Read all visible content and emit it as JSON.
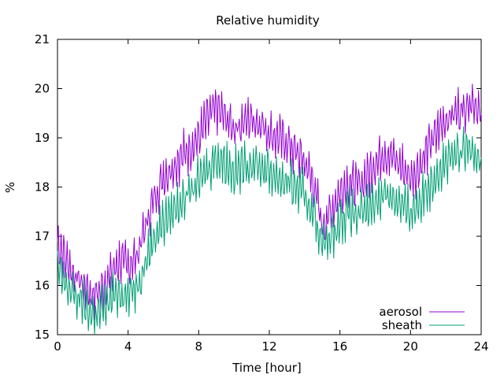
{
  "chart_data": {
    "type": "line",
    "title": "Relative humidity",
    "xlabel": "Time [hour]",
    "ylabel": "%",
    "xlim": [
      0,
      24
    ],
    "ylim": [
      15,
      21
    ],
    "xticks": [
      0,
      4,
      8,
      12,
      16,
      20,
      24
    ],
    "yticks": [
      15,
      16,
      17,
      18,
      19,
      20,
      21
    ],
    "grid": false,
    "legend_position": "bottom-right",
    "series": [
      {
        "name": "aerosol",
        "color": "#9400d3",
        "x": [
          0,
          0.5,
          1,
          1.5,
          2,
          2.5,
          3,
          3.5,
          4,
          4.5,
          5,
          5.5,
          6,
          6.5,
          7,
          7.5,
          8,
          8.5,
          9,
          9.5,
          10,
          10.5,
          11,
          11.5,
          12,
          12.5,
          13,
          13.5,
          14,
          14.5,
          15,
          15.5,
          16,
          16.5,
          17,
          17.5,
          18,
          18.5,
          19,
          19.5,
          20,
          20.5,
          21,
          21.5,
          22,
          22.5,
          23,
          23.5,
          24
        ],
        "values": [
          16.9,
          16.5,
          16.2,
          16.0,
          15.8,
          15.9,
          16.2,
          16.5,
          16.4,
          16.6,
          17.2,
          17.8,
          18.2,
          18.4,
          18.6,
          18.8,
          19.0,
          19.4,
          19.6,
          19.4,
          19.2,
          19.3,
          19.4,
          19.3,
          19.1,
          19.0,
          18.9,
          18.7,
          18.5,
          18.1,
          17.2,
          17.5,
          17.9,
          18.1,
          18.0,
          18.2,
          18.5,
          18.7,
          18.6,
          18.4,
          18.2,
          18.4,
          18.8,
          19.1,
          19.4,
          19.5,
          19.6,
          19.8,
          19.5
        ]
      },
      {
        "name": "sheath",
        "color": "#009e73",
        "x": [
          0,
          0.5,
          1,
          1.5,
          2,
          2.5,
          3,
          3.5,
          4,
          4.5,
          5,
          5.5,
          6,
          6.5,
          7,
          7.5,
          8,
          8.5,
          9,
          9.5,
          10,
          10.5,
          11,
          11.5,
          12,
          12.5,
          13,
          13.5,
          14,
          14.5,
          15,
          15.5,
          16,
          16.5,
          17,
          17.5,
          18,
          18.5,
          19,
          19.5,
          20,
          20.5,
          21,
          21.5,
          22,
          22.5,
          23,
          23.5,
          24
        ],
        "values": [
          16.3,
          16.0,
          15.8,
          15.6,
          15.4,
          15.5,
          15.7,
          15.9,
          15.8,
          16.0,
          16.5,
          17.0,
          17.3,
          17.5,
          17.7,
          17.9,
          18.1,
          18.4,
          18.6,
          18.5,
          18.3,
          18.4,
          18.5,
          18.4,
          18.3,
          18.2,
          18.1,
          18.0,
          17.8,
          17.5,
          16.8,
          17.0,
          17.3,
          17.5,
          17.4,
          17.5,
          17.7,
          17.9,
          17.8,
          17.6,
          17.5,
          17.7,
          18.0,
          18.3,
          18.5,
          18.6,
          18.7,
          18.8,
          18.6
        ]
      }
    ]
  }
}
